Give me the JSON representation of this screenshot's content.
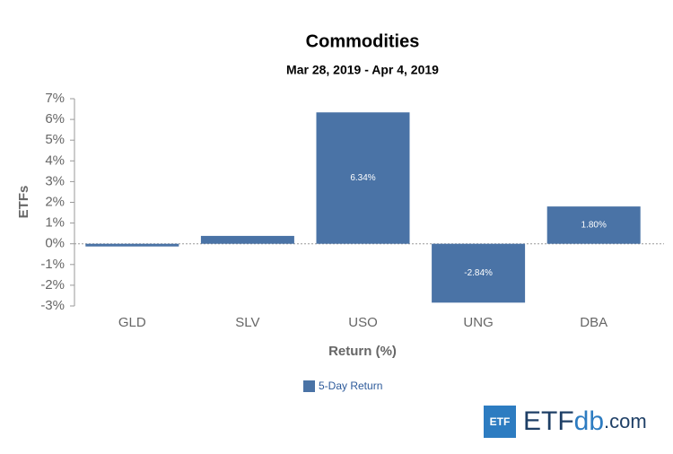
{
  "chart_data": {
    "type": "bar",
    "title": "Commodities",
    "subtitle": "Mar 28, 2019 - Apr 4, 2019",
    "x_label": "Return (%)",
    "y_label": "ETFs",
    "categories": [
      "GLD",
      "SLV",
      "USO",
      "UNG",
      "DBA"
    ],
    "series": [
      {
        "name": "5-Day Return",
        "color": "#4a73a6",
        "values": [
          -0.13,
          0.38,
          6.34,
          -2.84,
          1.8
        ],
        "value_labels": [
          null,
          null,
          "6.34%",
          "-2.84%",
          "1.80%"
        ]
      }
    ],
    "ylim": [
      -3,
      7
    ],
    "yticks": [
      {
        "value": -3,
        "label": "-3%"
      },
      {
        "value": -2,
        "label": "-2%"
      },
      {
        "value": -1,
        "label": "-1%"
      },
      {
        "value": 0,
        "label": "0%"
      },
      {
        "value": 1,
        "label": "1%"
      },
      {
        "value": 2,
        "label": "2%"
      },
      {
        "value": 3,
        "label": "3%"
      },
      {
        "value": 4,
        "label": "4%"
      },
      {
        "value": 5,
        "label": "5%"
      },
      {
        "value": 6,
        "label": "6%"
      },
      {
        "value": 7,
        "label": "7%"
      }
    ],
    "legend": "bottom"
  },
  "logo": {
    "badge": "ETF",
    "name": "ETF",
    "suffix": "db",
    "domain": ".com"
  }
}
